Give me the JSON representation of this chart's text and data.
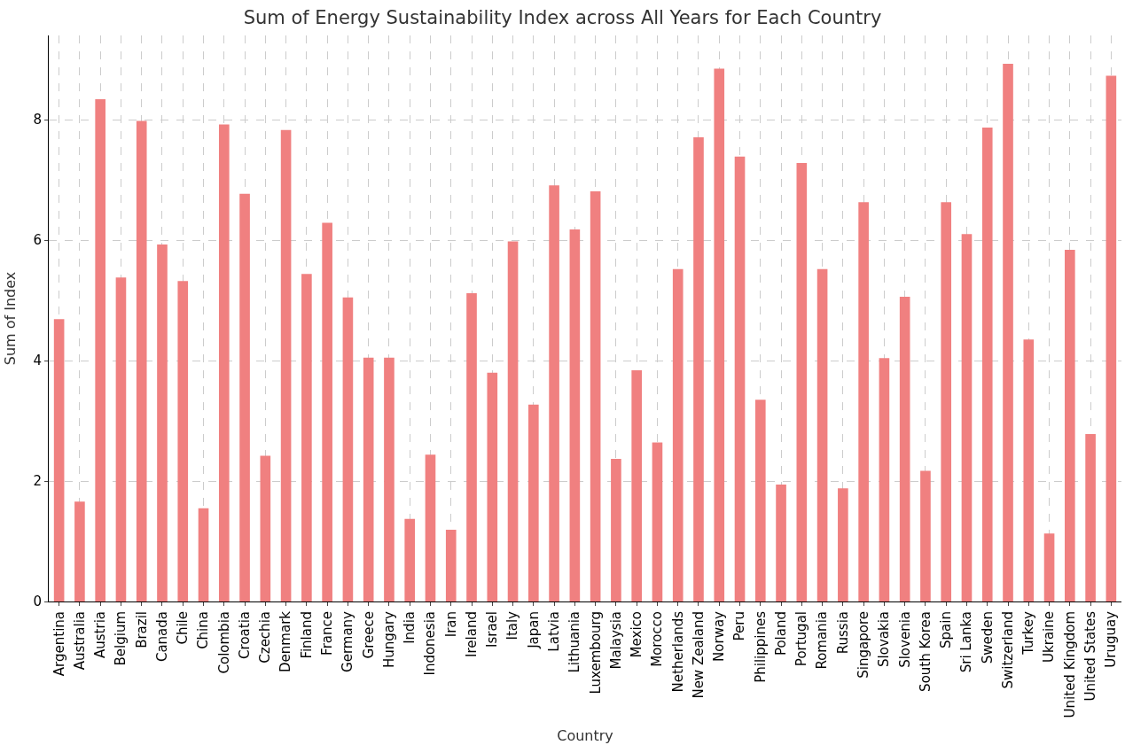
{
  "chart_data": {
    "type": "bar",
    "title": "Sum of Energy Sustainability Index across All Years for Each Country",
    "xlabel": "Country",
    "ylabel": "Sum of Index",
    "categories": [
      "Argentina",
      "Australia",
      "Austria",
      "Belgium",
      "Brazil",
      "Canada",
      "Chile",
      "China",
      "Colombia",
      "Croatia",
      "Czechia",
      "Denmark",
      "Finland",
      "France",
      "Germany",
      "Greece",
      "Hungary",
      "India",
      "Indonesia",
      "Iran",
      "Ireland",
      "Israel",
      "Italy",
      "Japan",
      "Latvia",
      "Lithuania",
      "Luxembourg",
      "Malaysia",
      "Mexico",
      "Morocco",
      "Netherlands",
      "New Zealand",
      "Norway",
      "Peru",
      "Philippines",
      "Poland",
      "Portugal",
      "Romania",
      "Russia",
      "Singapore",
      "Slovakia",
      "Slovenia",
      "South Korea",
      "Spain",
      "Sri Lanka",
      "Sweden",
      "Switzerland",
      "Turkey",
      "Ukraine",
      "United Kingdom",
      "United States",
      "Uruguay"
    ],
    "values": [
      4.69,
      1.66,
      8.34,
      5.38,
      7.98,
      5.93,
      5.32,
      1.55,
      7.92,
      6.77,
      2.42,
      7.83,
      5.44,
      6.29,
      5.05,
      4.05,
      4.05,
      1.37,
      2.44,
      1.19,
      5.12,
      3.8,
      5.98,
      3.27,
      6.91,
      6.18,
      6.81,
      2.37,
      3.84,
      2.64,
      5.52,
      7.71,
      8.85,
      7.39,
      3.35,
      1.94,
      7.28,
      5.52,
      1.88,
      6.63,
      4.04,
      5.06,
      2.17,
      6.63,
      6.1,
      7.87,
      8.93,
      4.35,
      1.13,
      5.84,
      2.78,
      8.73
    ],
    "color": "#f08080",
    "ylim": [
      0,
      9.4
    ],
    "yticks": [
      0,
      2,
      4,
      6,
      8
    ],
    "grid": true
  }
}
